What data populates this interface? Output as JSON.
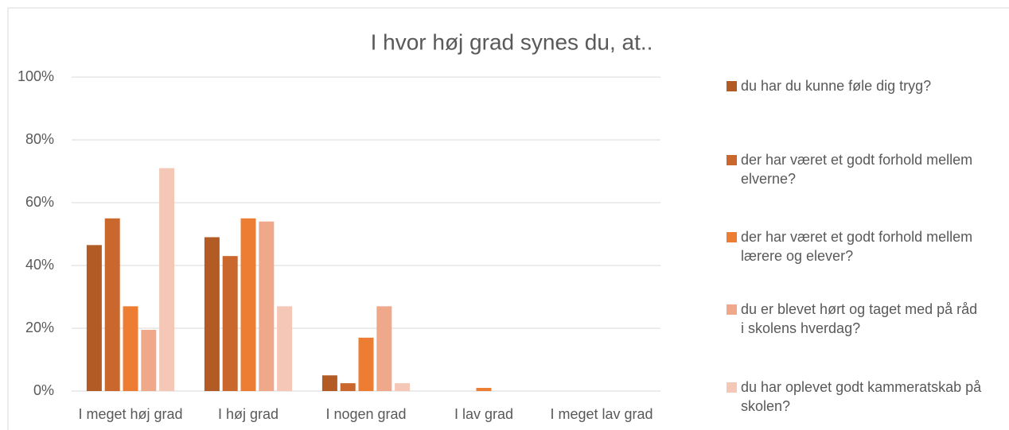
{
  "chart_data": {
    "type": "bar",
    "title": "I hvor høj grad synes du, at..",
    "categories": [
      "I meget høj grad",
      "I høj grad",
      "I nogen grad",
      "I lav grad",
      "I meget lav grad"
    ],
    "series": [
      {
        "name": "du har du kunne føle dig tryg?",
        "color": "#b35b25",
        "values": [
          46.5,
          49,
          5,
          0,
          0
        ]
      },
      {
        "name": "der har været et godt forhold mellem elverne?",
        "color": "#c9672c",
        "values": [
          55,
          43,
          2.5,
          0,
          0
        ]
      },
      {
        "name": "der har været et godt forhold mellem lærere og elever?",
        "color": "#ec7d33",
        "values": [
          27,
          55,
          17,
          1,
          0
        ]
      },
      {
        "name": "du er blevet hørt og taget med på råd i skolens hverdag?",
        "color": "#f0a88b",
        "values": [
          19.5,
          54,
          27,
          0,
          0
        ]
      },
      {
        "name": "du har oplevet godt kammeratskab på skolen?",
        "color": "#f5c7b7",
        "values": [
          71,
          27,
          2.5,
          0,
          0
        ]
      }
    ],
    "ylim": [
      0,
      100
    ],
    "yticks": [
      {
        "value": 0,
        "label": "0%"
      },
      {
        "value": 20,
        "label": "20%"
      },
      {
        "value": 40,
        "label": "40%"
      },
      {
        "value": 60,
        "label": "60%"
      },
      {
        "value": 80,
        "label": "80%"
      },
      {
        "value": 100,
        "label": "100%"
      }
    ],
    "grid": true,
    "legend": "right"
  }
}
